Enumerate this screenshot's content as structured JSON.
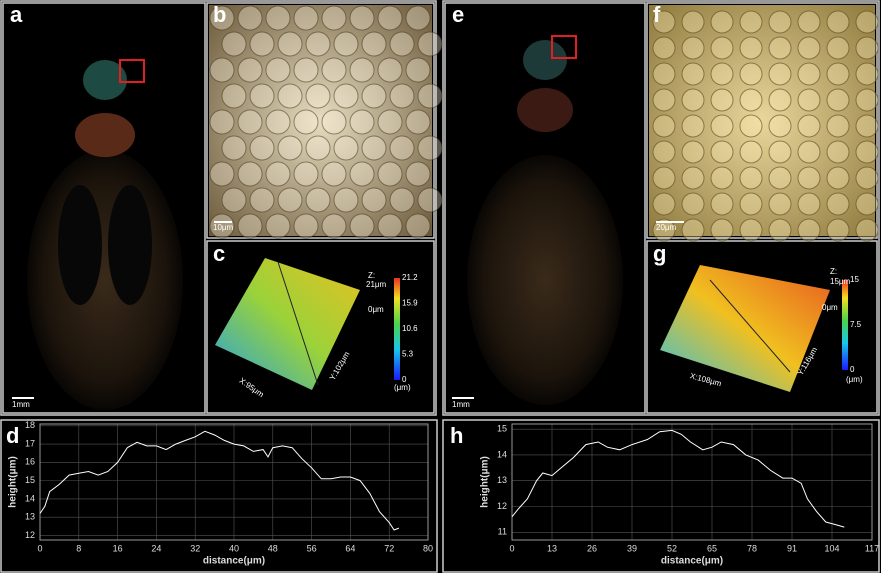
{
  "panels": {
    "a": {
      "label": "a",
      "scale_bar": "1mm"
    },
    "b": {
      "label": "b",
      "scale_bar": "10μm"
    },
    "c": {
      "label": "c",
      "z_label": "Z:",
      "z_max": "21μm",
      "z_min": "0μm",
      "x_label": "X:95μm",
      "y_label": "Y:102μm",
      "colorbar_ticks": [
        21.2,
        15.9,
        10.6,
        5.3,
        0
      ],
      "colorbar_unit": "(μm)"
    },
    "d": {
      "label": "d"
    },
    "e": {
      "label": "e",
      "scale_bar": "1mm"
    },
    "f": {
      "label": "f",
      "scale_bar": "20μm"
    },
    "g": {
      "label": "g",
      "z_label": "Z:",
      "z_max": "15μm",
      "z_min": "0μm",
      "x_label": "X:108μm",
      "y_label": "Y:116μm",
      "colorbar_ticks": [
        15,
        7.5,
        0
      ],
      "colorbar_unit": "(μm)"
    },
    "h": {
      "label": "h"
    }
  },
  "chart_data": [
    {
      "type": "line",
      "x_label": "distance(μm)",
      "y_label": "height(μm)",
      "grid": true,
      "x": [
        0,
        1,
        2,
        4,
        6,
        8,
        10,
        12,
        14,
        16,
        18,
        20,
        22,
        24,
        26,
        28,
        30,
        32,
        34,
        36,
        38,
        40,
        42,
        44,
        46,
        47,
        48,
        50,
        52,
        54,
        56,
        58,
        60,
        62,
        64,
        66,
        68,
        70,
        72,
        73,
        74
      ],
      "series": [
        {
          "color": "#ffffff",
          "values": [
            13.2,
            13.6,
            14.4,
            14.8,
            15.3,
            15.4,
            15.5,
            15.3,
            15.5,
            16.0,
            16.8,
            17.1,
            16.9,
            16.9,
            16.7,
            17.0,
            17.2,
            17.4,
            17.7,
            17.5,
            17.2,
            17.0,
            16.9,
            16.6,
            16.7,
            16.3,
            16.8,
            16.9,
            16.8,
            16.2,
            15.7,
            15.1,
            15.1,
            15.2,
            15.2,
            15.0,
            14.3,
            13.3,
            12.7,
            12.3,
            12.4
          ]
        }
      ],
      "xlim": [
        0,
        80
      ],
      "xticks": [
        0,
        8,
        16,
        24,
        32,
        40,
        48,
        56,
        64,
        72,
        80
      ],
      "ylim": [
        11.75,
        18.1
      ],
      "yticks": [
        12,
        13,
        14,
        15,
        16,
        17,
        18
      ]
    },
    {
      "type": "line",
      "x_label": "distance(μm)",
      "y_label": "height(μm)",
      "grid": true,
      "x": [
        0,
        2,
        5,
        8,
        10,
        13,
        16,
        20,
        24,
        28,
        31,
        35,
        39,
        44,
        48,
        52,
        55,
        58,
        62,
        65,
        68,
        72,
        76,
        80,
        84,
        88,
        91,
        94,
        96,
        99,
        102,
        105,
        108
      ],
      "series": [
        {
          "color": "#ffffff",
          "values": [
            11.6,
            11.9,
            12.3,
            13.0,
            13.3,
            13.2,
            13.5,
            13.9,
            14.4,
            14.5,
            14.3,
            14.2,
            14.4,
            14.6,
            14.9,
            14.95,
            14.8,
            14.5,
            14.2,
            14.3,
            14.5,
            14.4,
            14.0,
            13.8,
            13.4,
            13.1,
            13.1,
            12.9,
            12.3,
            11.8,
            11.4,
            11.3,
            11.2
          ]
        }
      ],
      "xlim": [
        0,
        117
      ],
      "xticks": [
        0,
        13,
        26,
        39,
        52,
        65,
        78,
        91,
        104,
        117
      ],
      "ylim": [
        10.7,
        15.2
      ],
      "yticks": [
        11,
        12,
        13,
        14,
        15
      ]
    }
  ]
}
